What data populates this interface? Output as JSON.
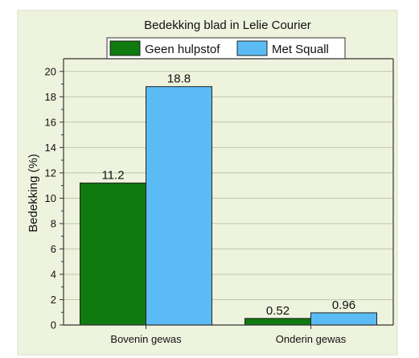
{
  "chart_data": {
    "type": "bar",
    "title": "Bedekking blad in Lelie Courier",
    "xlabel": "",
    "ylabel": "Bedekking (%)",
    "categories": [
      "Bovenin gewas",
      "Onderin gewas"
    ],
    "series": [
      {
        "name": "Geen hulpstof",
        "values": [
          11.2,
          0.52
        ],
        "labels": [
          "11.2",
          "0.52"
        ],
        "color": "#0f7a0f"
      },
      {
        "name": "Met Squall",
        "values": [
          18.8,
          0.96
        ],
        "labels": [
          "18.8",
          "0.96"
        ],
        "color": "#5bbcf5"
      }
    ],
    "ylim": [
      0,
      21
    ],
    "yticks": [
      0,
      2,
      4,
      6,
      8,
      10,
      12,
      14,
      16,
      18,
      20
    ],
    "grid": true,
    "legend": "top",
    "plot_background": "#eef3de"
  }
}
